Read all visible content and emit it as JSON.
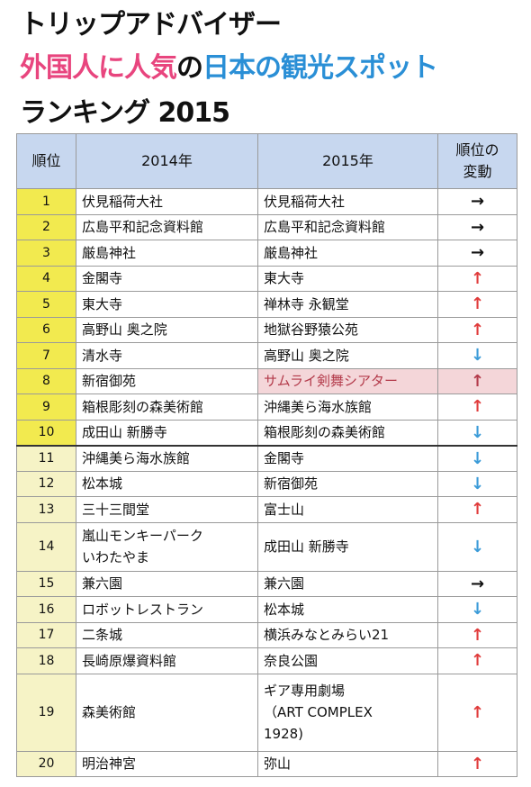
{
  "title": {
    "line1": "トリップアドバイザー",
    "line2": [
      {
        "text": "外国人に人気",
        "color": "pink"
      },
      {
        "text": "の",
        "color": "blk"
      },
      {
        "text": "日本の観光スポット",
        "color": "blue"
      }
    ],
    "line3": "ランキング 2015"
  },
  "table": {
    "headers": {
      "rank": "順位",
      "y2014": "2014年",
      "y2015": "2015年",
      "change": "順位の\n変動"
    },
    "rows": [
      {
        "rank": "1",
        "y2014": "伏見稲荷大社",
        "y2015": "伏見稲荷大社",
        "change": "flat"
      },
      {
        "rank": "2",
        "y2014": "広島平和記念資料館",
        "y2015": "広島平和記念資料館",
        "change": "flat"
      },
      {
        "rank": "3",
        "y2014": "厳島神社",
        "y2015": "厳島神社",
        "change": "flat"
      },
      {
        "rank": "4",
        "y2014": "金閣寺",
        "y2015": "東大寺",
        "change": "up"
      },
      {
        "rank": "5",
        "y2014": "東大寺",
        "y2015": "禅林寺 永観堂",
        "change": "up"
      },
      {
        "rank": "6",
        "y2014": "高野山 奥之院",
        "y2015": "地獄谷野猿公苑",
        "change": "up"
      },
      {
        "rank": "7",
        "y2014": "清水寺",
        "y2015": "高野山 奥之院",
        "change": "down"
      },
      {
        "rank": "8",
        "y2014": "新宿御苑",
        "y2015": "サムライ剣舞シアター",
        "change": "up",
        "highlight": true
      },
      {
        "rank": "9",
        "y2014": "箱根彫刻の森美術館",
        "y2015": "沖縄美ら海水族館",
        "change": "up"
      },
      {
        "rank": "10",
        "y2014": "成田山 新勝寺",
        "y2015": "箱根彫刻の森美術館",
        "change": "down"
      },
      {
        "rank": "11",
        "y2014": "沖縄美ら海水族館",
        "y2015": "金閣寺",
        "change": "down"
      },
      {
        "rank": "12",
        "y2014": "松本城",
        "y2015": "新宿御苑",
        "change": "down"
      },
      {
        "rank": "13",
        "y2014": "三十三間堂",
        "y2015": "富士山",
        "change": "up"
      },
      {
        "rank": "14",
        "y2014": "嵐山モンキーパーク\nいわたやま",
        "y2015": "成田山 新勝寺",
        "change": "down"
      },
      {
        "rank": "15",
        "y2014": "兼六園",
        "y2015": "兼六園",
        "change": "flat"
      },
      {
        "rank": "16",
        "y2014": "ロボットレストラン",
        "y2015": "松本城",
        "change": "down"
      },
      {
        "rank": "17",
        "y2014": "二条城",
        "y2015": "横浜みなとみらい21",
        "change": "up"
      },
      {
        "rank": "18",
        "y2014": "長崎原爆資料館",
        "y2015": "奈良公園",
        "change": "up"
      },
      {
        "rank": "19",
        "y2014": "森美術館",
        "y2015": "ギア専用劇場\n（ART COMPLEX\n1928)",
        "change": "up"
      },
      {
        "rank": "20",
        "y2014": "明治神宮",
        "y2015": "弥山",
        "change": "up"
      }
    ],
    "arrows": {
      "flat": "→",
      "up": "↑",
      "down": "↓"
    },
    "colors": {
      "rank_fill": "#f2ea4f",
      "rank_fill_lower": "#f6f3c6",
      "header_fill": "#c7d7ef",
      "highlight_fill": "#f4d6d9",
      "up": "#e03b3b",
      "down": "#3b9bd8"
    }
  }
}
